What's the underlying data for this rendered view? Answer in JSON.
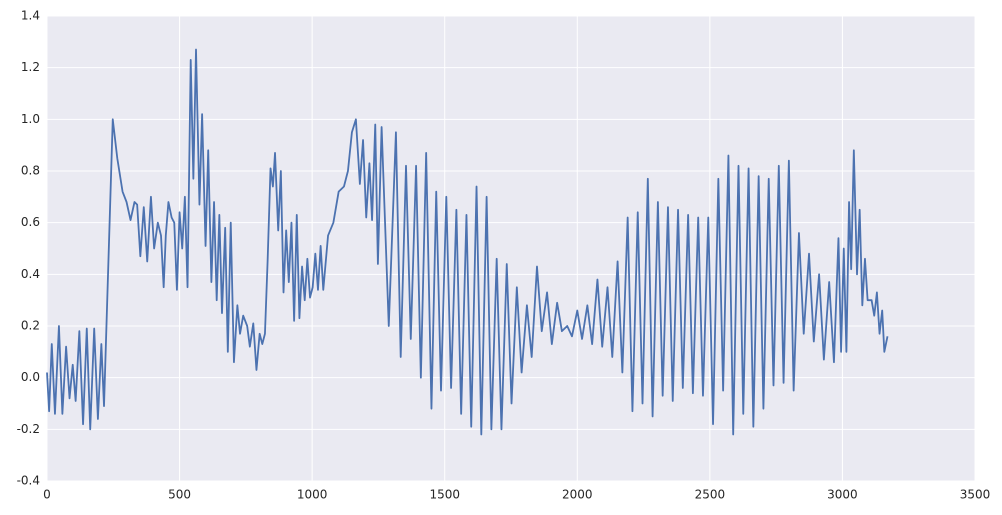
{
  "chart_data": {
    "type": "line",
    "x": [
      0,
      8,
      18,
      30,
      45,
      58,
      72,
      85,
      97,
      108,
      122,
      136,
      150,
      163,
      178,
      192,
      205,
      215,
      248,
      265,
      285,
      300,
      315,
      330,
      340,
      352,
      365,
      378,
      392,
      404,
      418,
      430,
      440,
      448,
      458,
      470,
      480,
      490,
      500,
      510,
      520,
      530,
      542,
      552,
      562,
      575,
      585,
      598,
      608,
      620,
      630,
      640,
      650,
      660,
      672,
      682,
      693,
      705,
      718,
      728,
      740,
      755,
      765,
      778,
      790,
      802,
      812,
      822,
      832,
      843,
      852,
      860,
      872,
      882,
      892,
      902,
      912,
      922,
      932,
      942,
      952,
      962,
      972,
      982,
      992,
      1002,
      1012,
      1022,
      1032,
      1042,
      1060,
      1080,
      1100,
      1120,
      1135,
      1150,
      1165,
      1180,
      1192,
      1204,
      1216,
      1226,
      1238,
      1248,
      1262,
      1289,
      1316,
      1334,
      1354,
      1372,
      1392,
      1410,
      1430,
      1450,
      1468,
      1486,
      1506,
      1524,
      1544,
      1562,
      1582,
      1600,
      1620,
      1638,
      1658,
      1676,
      1696,
      1714,
      1734,
      1752,
      1772,
      1790,
      1810,
      1828,
      1848,
      1866,
      1886,
      1904,
      1924,
      1942,
      1962,
      1980,
      2000,
      2018,
      2038,
      2056,
      2076,
      2094,
      2114,
      2132,
      2152,
      2170,
      2190,
      2208,
      2228,
      2246,
      2266,
      2284,
      2304,
      2322,
      2342,
      2360,
      2380,
      2398,
      2418,
      2436,
      2456,
      2474,
      2494,
      2512,
      2532,
      2550,
      2570,
      2588,
      2608,
      2626,
      2646,
      2664,
      2684,
      2702,
      2722,
      2740,
      2760,
      2778,
      2798,
      2816,
      2836,
      2854,
      2874,
      2892,
      2912,
      2930,
      2950,
      2968,
      2985,
      2995,
      3005,
      3015,
      3025,
      3033,
      3043,
      3055,
      3065,
      3075,
      3085,
      3095,
      3110,
      3120,
      3130,
      3140,
      3150,
      3158,
      3170
    ],
    "series": [
      {
        "color": "#4c72b0",
        "values": [
          0.02,
          -0.13,
          0.13,
          -0.14,
          0.2,
          -0.14,
          0.12,
          -0.08,
          0.05,
          -0.09,
          0.18,
          -0.18,
          0.19,
          -0.2,
          0.19,
          -0.16,
          0.13,
          -0.11,
          1.0,
          0.85,
          0.72,
          0.68,
          0.61,
          0.68,
          0.67,
          0.47,
          0.66,
          0.45,
          0.7,
          0.5,
          0.6,
          0.55,
          0.35,
          0.55,
          0.68,
          0.62,
          0.6,
          0.34,
          0.64,
          0.5,
          0.7,
          0.35,
          1.23,
          0.77,
          1.27,
          0.67,
          1.02,
          0.51,
          0.88,
          0.37,
          0.68,
          0.3,
          0.63,
          0.25,
          0.58,
          0.1,
          0.6,
          0.06,
          0.28,
          0.17,
          0.24,
          0.2,
          0.12,
          0.21,
          0.03,
          0.17,
          0.13,
          0.17,
          0.45,
          0.81,
          0.74,
          0.87,
          0.57,
          0.8,
          0.33,
          0.57,
          0.37,
          0.6,
          0.22,
          0.63,
          0.23,
          0.43,
          0.3,
          0.46,
          0.31,
          0.35,
          0.48,
          0.34,
          0.51,
          0.34,
          0.55,
          0.6,
          0.72,
          0.74,
          0.8,
          0.95,
          1.0,
          0.75,
          0.92,
          0.62,
          0.83,
          0.61,
          0.98,
          0.44,
          0.97,
          0.2,
          0.95,
          0.08,
          0.82,
          0.15,
          0.82,
          0.0,
          0.87,
          -0.12,
          0.72,
          -0.05,
          0.7,
          -0.04,
          0.65,
          -0.14,
          0.63,
          -0.19,
          0.74,
          -0.22,
          0.7,
          -0.2,
          0.46,
          -0.2,
          0.44,
          -0.1,
          0.35,
          0.02,
          0.28,
          0.08,
          0.43,
          0.18,
          0.33,
          0.13,
          0.29,
          0.18,
          0.2,
          0.16,
          0.26,
          0.15,
          0.28,
          0.13,
          0.38,
          0.12,
          0.35,
          0.08,
          0.45,
          0.02,
          0.62,
          -0.13,
          0.64,
          -0.1,
          0.77,
          -0.15,
          0.68,
          -0.07,
          0.66,
          -0.09,
          0.65,
          -0.04,
          0.63,
          -0.06,
          0.62,
          -0.07,
          0.62,
          -0.18,
          0.77,
          -0.05,
          0.86,
          -0.22,
          0.82,
          -0.14,
          0.81,
          -0.19,
          0.78,
          -0.12,
          0.77,
          -0.03,
          0.82,
          -0.02,
          0.84,
          -0.05,
          0.56,
          0.17,
          0.48,
          0.14,
          0.4,
          0.07,
          0.37,
          0.06,
          0.54,
          0.1,
          0.5,
          0.1,
          0.68,
          0.42,
          0.88,
          0.4,
          0.65,
          0.28,
          0.46,
          0.3,
          0.3,
          0.24,
          0.33,
          0.17,
          0.26,
          0.1,
          0.16
        ]
      }
    ],
    "xlim": [
      0,
      3500
    ],
    "xticks": [
      0,
      500,
      1000,
      1500,
      2000,
      2500,
      3000,
      3500
    ],
    "ylim": [
      -0.4,
      1.4
    ],
    "yticks": [
      -0.4,
      -0.2,
      {
        "value": 0,
        "label": "0.0"
      },
      0.2,
      0.4,
      0.6,
      0.8,
      {
        "value": 1,
        "label": "1.0"
      },
      1.2,
      1.4
    ],
    "grid": true
  }
}
